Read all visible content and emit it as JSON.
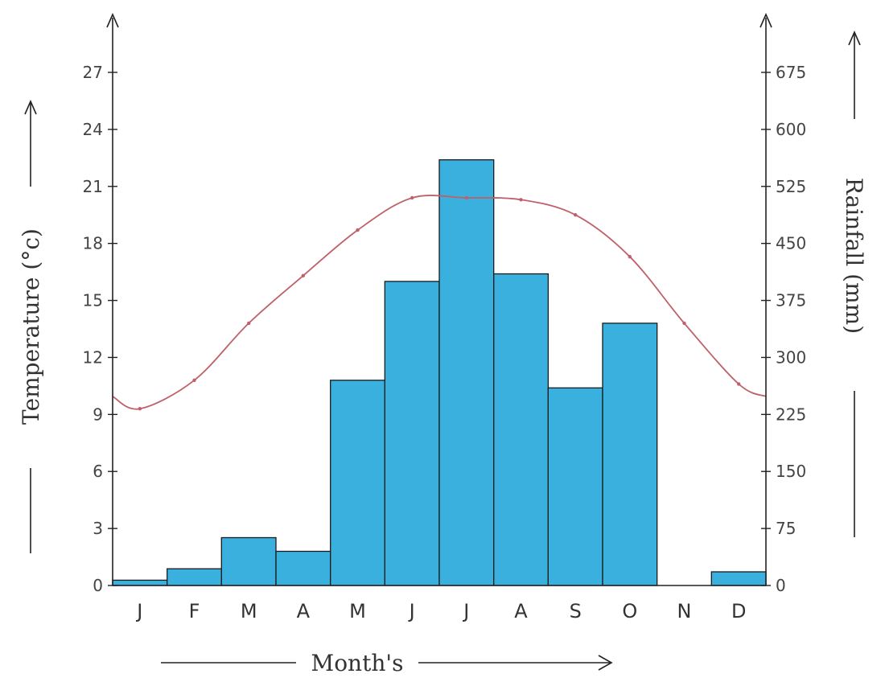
{
  "chart_data": {
    "type": "bar",
    "xlabel": "Month's",
    "categories": [
      "J",
      "F",
      "M",
      "A",
      "M",
      "J",
      "J",
      "A",
      "S",
      "O",
      "N",
      "D"
    ],
    "series": [
      {
        "type": "bar",
        "axis": "right",
        "values": [
          7,
          22,
          63,
          45,
          270,
          400,
          560,
          410,
          260,
          345,
          0,
          18
        ],
        "color": "#29a9dc"
      },
      {
        "type": "line",
        "axis": "left",
        "values": [
          9.3,
          10.8,
          13.8,
          16.3,
          18.7,
          20.4,
          20.4,
          20.3,
          19.5,
          17.3,
          13.8,
          10.6
        ],
        "color": "#c0606a"
      }
    ],
    "y_left": {
      "label": "Temperature (°c)",
      "ylim": [
        0,
        27
      ],
      "ticks": [
        "0",
        "3",
        "6",
        "9",
        "12",
        "15",
        "18",
        "21",
        "24",
        "27"
      ]
    },
    "y_right": {
      "label": "Rainfall (mm)",
      "ylim": [
        0,
        675
      ],
      "ticks": [
        "0",
        "75",
        "150",
        "225",
        "300",
        "375",
        "450",
        "525",
        "600",
        "675"
      ]
    },
    "grid": false
  }
}
